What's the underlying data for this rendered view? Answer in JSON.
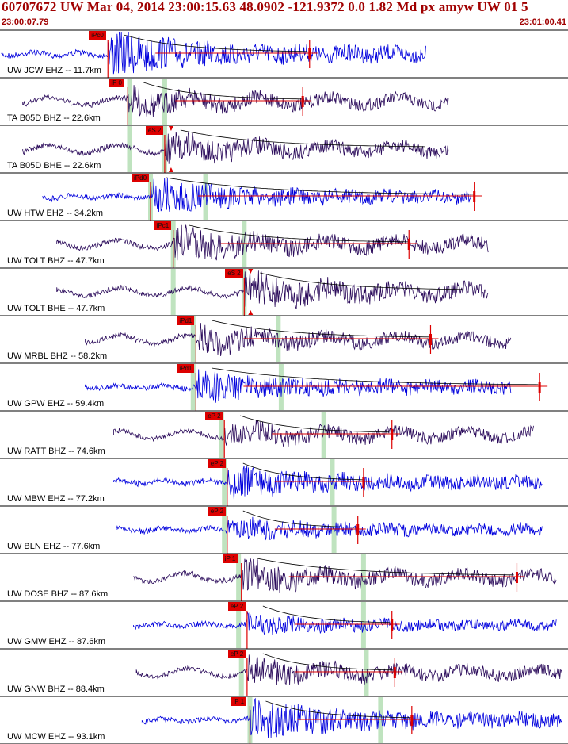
{
  "header": {
    "title": "60707672 UW Mar 04, 2014 23:00:15.63   48.0902 -121.9372  0.0 1.82 Md px amyw UW 01   5",
    "time_start": "23:00:07.79",
    "time_end": "23:01:00.41"
  },
  "colors": {
    "title": "#a00000",
    "pick": "#dd0000",
    "trace_blue": "#0000dd",
    "trace_purple": "#2a0a5a",
    "theoretical": "#bfe3bf"
  },
  "traces": [
    {
      "label": "UW JCW EHZ -- 11.7km",
      "pick_label": "iPc0",
      "color": "blue",
      "start": 0.0,
      "pick": 0.19,
      "end": 0.75,
      "theo": [],
      "tick": 0.545,
      "amp": 1.0,
      "arrival": false
    },
    {
      "label": "TA B05D BHZ -- 22.6km",
      "pick_label": "iP 0",
      "color": "purple",
      "start": 0.04,
      "pick": 0.225,
      "end": 0.79,
      "theo": [
        0.228,
        0.29
      ],
      "tick": 0.533,
      "amp": 0.55,
      "arrival": false
    },
    {
      "label": "TA B05D BHE -- 22.6km",
      "pick_label": "eS 2",
      "color": "purple",
      "start": 0.04,
      "pick": 0.29,
      "end": 0.79,
      "theo": [
        0.228,
        0.29
      ],
      "tick": null,
      "amp": 0.6,
      "arrival": true
    },
    {
      "label": "UW HTW EHZ -- 34.2km",
      "pick_label": "iPd0",
      "color": "blue",
      "start": 0.075,
      "pick": 0.265,
      "end": 0.83,
      "theo": [
        0.265,
        0.362
      ],
      "tick": 0.835,
      "amp": 0.7,
      "arrival": false
    },
    {
      "label": "UW TOLT BHZ -- 47.7km",
      "pick_label": "iPc1",
      "color": "purple",
      "start": 0.1,
      "pick": 0.305,
      "end": 0.86,
      "theo": [
        0.305,
        0.43
      ],
      "tick": 0.72,
      "amp": 0.7,
      "arrival": false
    },
    {
      "label": "UW TOLT BHE -- 47.7km",
      "pick_label": "eS 2",
      "color": "purple",
      "start": 0.1,
      "pick": 0.43,
      "end": 0.86,
      "theo": [
        0.305,
        0.43
      ],
      "tick": null,
      "amp": 0.75,
      "arrival": true
    },
    {
      "label": "UW MRBL BHZ -- 58.2km",
      "pick_label": "iPd1",
      "color": "purple",
      "start": 0.15,
      "pick": 0.345,
      "end": 0.9,
      "theo": [
        0.34,
        0.49
      ],
      "tick": 0.758,
      "amp": 0.55,
      "arrival": false
    },
    {
      "label": "UW GPW EHZ -- 59.4km",
      "pick_label": "iPd1",
      "color": "blue",
      "start": 0.15,
      "pick": 0.345,
      "end": 0.9,
      "theo": [
        0.34,
        0.495
      ],
      "tick": 0.95,
      "amp": 0.7,
      "arrival": false
    },
    {
      "label": "UW RATT BHZ -- 74.6km",
      "pick_label": "eP 2",
      "color": "purple",
      "start": 0.2,
      "pick": 0.395,
      "end": 0.94,
      "theo": [
        0.39,
        0.57
      ],
      "tick": 0.69,
      "amp": 0.45,
      "arrival": false
    },
    {
      "label": "UW MBW EHZ -- 77.2km",
      "pick_label": "eP 2",
      "color": "blue",
      "start": 0.2,
      "pick": 0.4,
      "end": 0.955,
      "theo": [
        0.395,
        0.585
      ],
      "tick": 0.64,
      "amp": 0.65,
      "arrival": false
    },
    {
      "label": "UW BLN EHZ -- 77.6km",
      "pick_label": "eP 2",
      "color": "blue",
      "start": 0.205,
      "pick": 0.4,
      "end": 0.955,
      "theo": [
        0.395,
        0.588
      ],
      "tick": 0.63,
      "amp": 0.45,
      "arrival": false
    },
    {
      "label": "UW DOSE BHZ -- 87.6km",
      "pick_label": "iP 1",
      "color": "purple",
      "start": 0.235,
      "pick": 0.425,
      "end": 0.98,
      "theo": [
        0.42,
        0.64
      ],
      "tick": 0.91,
      "amp": 0.6,
      "arrival": false
    },
    {
      "label": "UW GMW EHZ -- 87.6km",
      "pick_label": "eP 2",
      "color": "blue",
      "start": 0.235,
      "pick": 0.435,
      "end": 0.98,
      "theo": [
        0.42,
        0.64
      ],
      "tick": 0.69,
      "amp": 0.35,
      "arrival": false
    },
    {
      "label": "UW GNW BHZ -- 88.4km",
      "pick_label": "eP 2",
      "color": "purple",
      "start": 0.24,
      "pick": 0.435,
      "end": 0.99,
      "theo": [
        0.425,
        0.645
      ],
      "tick": 0.695,
      "amp": 0.55,
      "arrival": false
    },
    {
      "label": "UW MCW EHZ -- 93.1km",
      "pick_label": "iP 1",
      "color": "blue",
      "start": 0.25,
      "pick": 0.44,
      "end": 0.99,
      "theo": [
        0.44,
        0.67
      ],
      "tick": 0.725,
      "amp": 0.8,
      "arrival": false
    }
  ]
}
